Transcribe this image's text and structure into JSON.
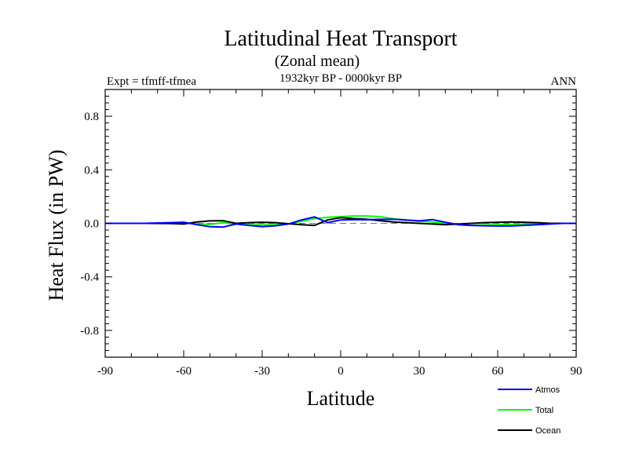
{
  "chart_data": {
    "type": "line",
    "title": "Latitudinal Heat Transport",
    "subtitle": "(Zonal mean)",
    "period": "1932kyr BP - 0000kyr BP",
    "experiment": "Expt = tfmff-tfmea",
    "season": "ANN",
    "xlabel": "Latitude",
    "ylabel": "Heat Flux (in PW)",
    "xlim": [
      -90,
      90
    ],
    "ylim": [
      -1.0,
      1.0
    ],
    "xticks": [
      -90,
      -60,
      -30,
      0,
      30,
      60,
      90
    ],
    "xtick_labels": [
      "-90",
      "-60",
      "-30",
      "0",
      "30",
      "60",
      "90"
    ],
    "yticks": [
      -0.8,
      -0.4,
      0.0,
      0.4,
      0.8
    ],
    "ytick_labels": [
      "-0.8",
      "-0.4",
      "0.0",
      "0.4",
      "0.8"
    ],
    "zero_line": "dashed",
    "series": [
      {
        "name": "Atmos",
        "color": "#0000ff",
        "x": [
          -90,
          -75,
          -65,
          -60,
          -55,
          -50,
          -45,
          -40,
          -35,
          -30,
          -25,
          -20,
          -15,
          -10,
          -5,
          0,
          5,
          10,
          15,
          20,
          25,
          30,
          35,
          40,
          45,
          50,
          55,
          60,
          65,
          70,
          75,
          80,
          85,
          90
        ],
        "y": [
          0.0,
          0.0,
          0.005,
          0.008,
          -0.01,
          -0.025,
          -0.028,
          -0.005,
          -0.015,
          -0.025,
          -0.018,
          -0.005,
          0.025,
          0.048,
          0.005,
          0.025,
          0.028,
          0.027,
          0.03,
          0.03,
          0.025,
          0.018,
          0.028,
          0.008,
          -0.01,
          -0.015,
          -0.018,
          -0.02,
          -0.02,
          -0.015,
          -0.01,
          -0.005,
          0.0,
          0.0
        ]
      },
      {
        "name": "Total",
        "color": "#00ff00",
        "x": [
          -90,
          -75,
          -65,
          -60,
          -55,
          -50,
          -45,
          -40,
          -35,
          -30,
          -25,
          -20,
          -15,
          -10,
          -5,
          0,
          5,
          10,
          15,
          20,
          25,
          30,
          35,
          40,
          45,
          50,
          55,
          60,
          65,
          70,
          75,
          80,
          85,
          90
        ],
        "y": [
          0.0,
          0.0,
          0.002,
          0.005,
          -0.005,
          -0.008,
          0.005,
          -0.005,
          -0.01,
          -0.012,
          -0.01,
          -0.005,
          0.015,
          0.035,
          0.045,
          0.05,
          0.055,
          0.055,
          0.05,
          0.035,
          0.025,
          0.015,
          0.01,
          0.0,
          -0.01,
          -0.015,
          -0.012,
          -0.01,
          -0.008,
          -0.005,
          0.0,
          0.0,
          0.0,
          0.0
        ]
      },
      {
        "name": "Ocean",
        "color": "#000000",
        "x": [
          -90,
          -75,
          -65,
          -60,
          -55,
          -50,
          -45,
          -40,
          -35,
          -30,
          -25,
          -20,
          -15,
          -10,
          -5,
          0,
          5,
          10,
          15,
          20,
          25,
          30,
          35,
          40,
          45,
          50,
          55,
          60,
          65,
          70,
          75,
          80,
          85,
          90
        ],
        "y": [
          0.0,
          0.0,
          -0.002,
          -0.005,
          0.01,
          0.018,
          0.02,
          0.0,
          0.005,
          0.008,
          0.005,
          -0.003,
          -0.01,
          -0.015,
          0.025,
          0.042,
          0.035,
          0.03,
          0.02,
          0.01,
          0.005,
          0.0,
          -0.005,
          -0.01,
          -0.005,
          0.0,
          0.005,
          0.008,
          0.01,
          0.008,
          0.005,
          0.0,
          0.0,
          0.0
        ]
      }
    ],
    "legend": {
      "placement": "bottom-right",
      "entries": [
        "Atmos",
        "Total",
        "Ocean"
      ]
    }
  }
}
